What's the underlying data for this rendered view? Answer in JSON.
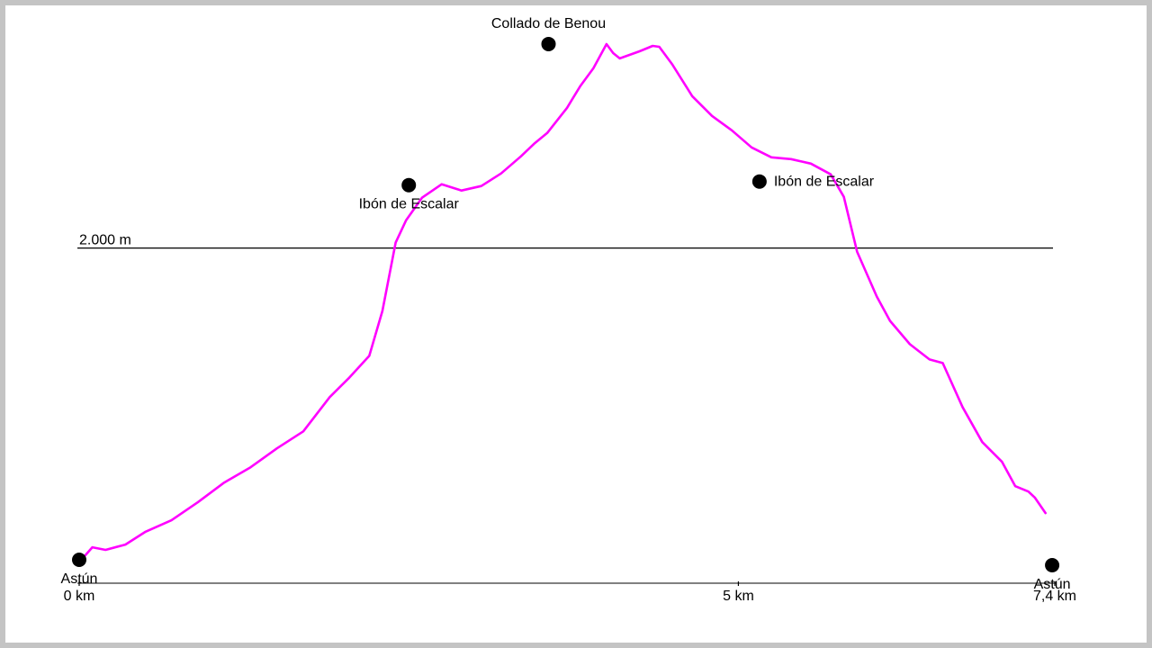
{
  "chart_data": {
    "type": "line",
    "title": "",
    "xlabel": "",
    "ylabel": "",
    "xlim": [
      0,
      7.4
    ],
    "ylim": [
      1635,
      2246
    ],
    "x_ticks": [
      {
        "value": 0,
        "label": "0 km"
      },
      {
        "value": 5,
        "label": "5 km"
      },
      {
        "value": 7.4,
        "label": "7,4 km"
      }
    ],
    "reference_line": {
      "value": 2000,
      "label": "2.000 m"
    },
    "series": [
      {
        "color": "#ff00ff",
        "points": [
          [
            0.04,
            1657
          ],
          [
            0.1,
            1667
          ],
          [
            0.2,
            1664
          ],
          [
            0.35,
            1670
          ],
          [
            0.5,
            1684
          ],
          [
            0.7,
            1697
          ],
          [
            0.9,
            1717
          ],
          [
            1.1,
            1739
          ],
          [
            1.3,
            1756
          ],
          [
            1.5,
            1777
          ],
          [
            1.7,
            1796
          ],
          [
            1.9,
            1834
          ],
          [
            2.05,
            1856
          ],
          [
            2.2,
            1880
          ],
          [
            2.3,
            1930
          ],
          [
            2.4,
            2006
          ],
          [
            2.48,
            2031
          ],
          [
            2.6,
            2056
          ],
          [
            2.75,
            2071
          ],
          [
            2.9,
            2064
          ],
          [
            3.05,
            2069
          ],
          [
            3.2,
            2083
          ],
          [
            3.35,
            2102
          ],
          [
            3.45,
            2116
          ],
          [
            3.55,
            2128
          ],
          [
            3.7,
            2156
          ],
          [
            3.8,
            2180
          ],
          [
            3.9,
            2200
          ],
          [
            4.0,
            2227
          ],
          [
            4.05,
            2217
          ],
          [
            4.1,
            2211
          ],
          [
            4.25,
            2219
          ],
          [
            4.35,
            2225
          ],
          [
            4.4,
            2224
          ],
          [
            4.5,
            2204
          ],
          [
            4.65,
            2169
          ],
          [
            4.8,
            2147
          ],
          [
            4.95,
            2131
          ],
          [
            5.1,
            2112
          ],
          [
            5.25,
            2101
          ],
          [
            5.4,
            2099
          ],
          [
            5.55,
            2094
          ],
          [
            5.7,
            2082
          ],
          [
            5.8,
            2057
          ],
          [
            5.9,
            1996
          ],
          [
            6.05,
            1946
          ],
          [
            6.15,
            1919
          ],
          [
            6.3,
            1893
          ],
          [
            6.45,
            1876
          ],
          [
            6.55,
            1872
          ],
          [
            6.7,
            1823
          ],
          [
            6.85,
            1784
          ],
          [
            7.0,
            1762
          ],
          [
            7.1,
            1735
          ],
          [
            7.2,
            1729
          ],
          [
            7.25,
            1722
          ],
          [
            7.33,
            1705
          ]
        ]
      }
    ],
    "waypoints": [
      {
        "label": "Astún",
        "x": 0.0,
        "y": 1653,
        "label_pos": "below"
      },
      {
        "label": "Ibón de Escalar",
        "x": 2.5,
        "y": 2070,
        "label_pos": "below"
      },
      {
        "label": "Collado de Benou",
        "x": 3.56,
        "y": 2227,
        "label_pos": "above"
      },
      {
        "label": "Ibón de Escalar",
        "x": 5.16,
        "y": 2074,
        "label_pos": "right"
      },
      {
        "label": "Astún",
        "x": 7.38,
        "y": 1647,
        "label_pos": "below"
      }
    ]
  }
}
